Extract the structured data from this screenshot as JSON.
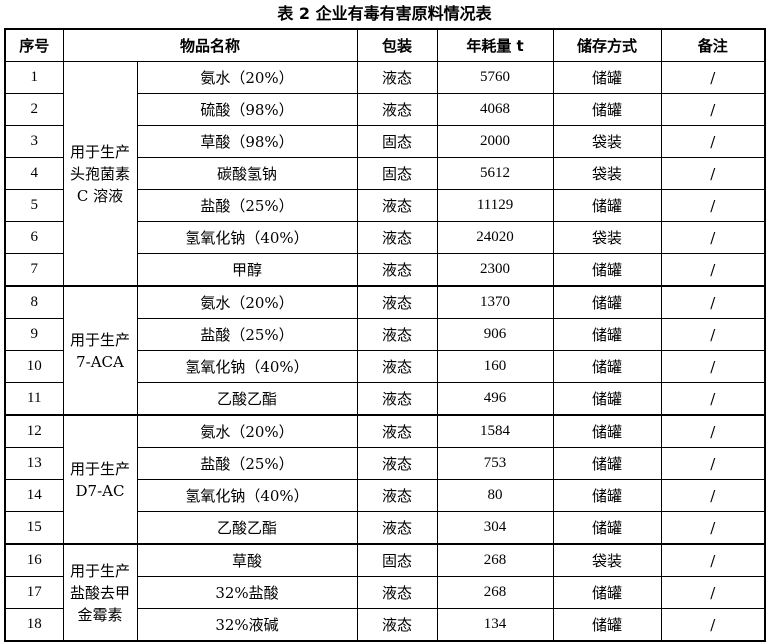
{
  "caption": "表 2   企业有毒有害原料情况表",
  "headers": [
    "序号",
    "物品名称",
    "包装",
    "年耗量 t",
    "储存方式",
    "备注"
  ],
  "groups": [
    {
      "label": "用于生产头孢菌素 C 溶液",
      "rows": [
        {
          "no": "1",
          "name": "氨水（20%）",
          "pack": "液态",
          "qty": "5760",
          "store": "储罐",
          "note": "/"
        },
        {
          "no": "2",
          "name": "硫酸（98%）",
          "pack": "液态",
          "qty": "4068",
          "store": "储罐",
          "note": "/"
        },
        {
          "no": "3",
          "name": "草酸（98%）",
          "pack": "固态",
          "qty": "2000",
          "store": "袋装",
          "note": "/"
        },
        {
          "no": "4",
          "name": "碳酸氢钠",
          "pack": "固态",
          "qty": "5612",
          "store": "袋装",
          "note": "/"
        },
        {
          "no": "5",
          "name": "盐酸（25%）",
          "pack": "液态",
          "qty": "11129",
          "store": "储罐",
          "note": "/"
        },
        {
          "no": "6",
          "name": "氢氧化钠（40%）",
          "pack": "液态",
          "qty": "24020",
          "store": "袋装",
          "note": "/"
        },
        {
          "no": "7",
          "name": "甲醇",
          "pack": "液态",
          "qty": "2300",
          "store": "储罐",
          "note": "/"
        }
      ]
    },
    {
      "label": "用于生产 7-ACA",
      "rows": [
        {
          "no": "8",
          "name": "氨水（20%）",
          "pack": "液态",
          "qty": "1370",
          "store": "储罐",
          "note": "/"
        },
        {
          "no": "9",
          "name": "盐酸（25%）",
          "pack": "液态",
          "qty": "906",
          "store": "储罐",
          "note": "/"
        },
        {
          "no": "10",
          "name": "氢氧化钠（40%）",
          "pack": "液态",
          "qty": "160",
          "store": "储罐",
          "note": "/"
        },
        {
          "no": "11",
          "name": "乙酸乙酯",
          "pack": "液态",
          "qty": "496",
          "store": "储罐",
          "note": "/"
        }
      ]
    },
    {
      "label": "用于生产 D7-AC",
      "rows": [
        {
          "no": "12",
          "name": "氨水（20%）",
          "pack": "液态",
          "qty": "1584",
          "store": "储罐",
          "note": "/"
        },
        {
          "no": "13",
          "name": "盐酸（25%）",
          "pack": "液态",
          "qty": "753",
          "store": "储罐",
          "note": "/"
        },
        {
          "no": "14",
          "name": "氢氧化钠（40%）",
          "pack": "液态",
          "qty": "80",
          "store": "储罐",
          "note": "/"
        },
        {
          "no": "15",
          "name": "乙酸乙酯",
          "pack": "液态",
          "qty": "304",
          "store": "储罐",
          "note": "/"
        }
      ]
    },
    {
      "label": "用于生产盐酸去甲金霉素",
      "rows": [
        {
          "no": "16",
          "name": "草酸",
          "pack": "固态",
          "qty": "268",
          "store": "袋装",
          "note": "/"
        },
        {
          "no": "17",
          "name": "32%盐酸",
          "pack": "液态",
          "qty": "268",
          "store": "储罐",
          "note": "/"
        },
        {
          "no": "18",
          "name": "32%液碱",
          "pack": "液态",
          "qty": "134",
          "store": "储罐",
          "note": "/"
        }
      ]
    }
  ]
}
